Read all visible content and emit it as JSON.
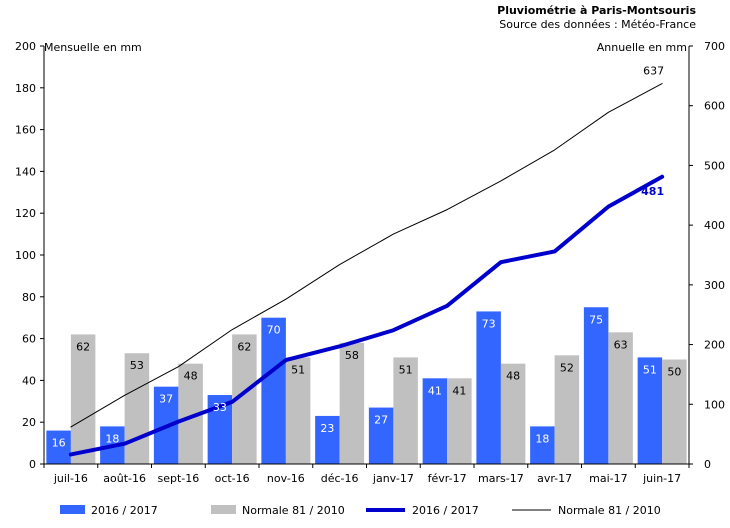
{
  "chart_data": {
    "type": "bar+line",
    "title": "Pluviométrie à Paris-Montsouris",
    "subtitle": "Source des données : Météo-France",
    "y_left_label": "Mensuelle en mm",
    "y_right_label": "Annuelle en mm",
    "y_left_lim": [
      0,
      200
    ],
    "y_left_ticks": [
      0,
      20,
      40,
      60,
      80,
      100,
      120,
      140,
      160,
      180,
      200
    ],
    "y_right_lim": [
      0,
      700
    ],
    "y_right_ticks": [
      0,
      100,
      200,
      300,
      400,
      500,
      600,
      700
    ],
    "categories": [
      "juil-16",
      "août-16",
      "sept-16",
      "oct-16",
      "nov-16",
      "déc-16",
      "janv-17",
      "févr-17",
      "mars-17",
      "avr-17",
      "mai-17",
      "juin-17"
    ],
    "bar_series": [
      {
        "name": "2016 / 2017",
        "color": "#3366ff",
        "label_color": "#ffffff",
        "values": [
          16,
          18,
          37,
          33,
          70,
          23,
          27,
          41,
          73,
          18,
          75,
          51
        ]
      },
      {
        "name": "Normale 81 / 2010",
        "color": "#c0c0c0",
        "label_color": "#000000",
        "values": [
          62,
          53,
          48,
          62,
          51,
          58,
          51,
          41,
          48,
          52,
          63,
          50
        ]
      }
    ],
    "line_series": [
      {
        "name": "2016 / 2017",
        "color": "#0000cc",
        "width": 4,
        "values": [
          16,
          34,
          71,
          104,
          174,
          197,
          224,
          265,
          338,
          356,
          431,
          481
        ],
        "end_label": "481"
      },
      {
        "name": "Normale 81 / 2010",
        "color": "#000000",
        "width": 1,
        "values": [
          62,
          115,
          163,
          225,
          276,
          334,
          385,
          426,
          474,
          526,
          589,
          637
        ],
        "end_label": "637"
      }
    ],
    "legend": [
      {
        "kind": "bar",
        "label": "2016 / 2017",
        "color": "#3366ff"
      },
      {
        "kind": "bar",
        "label": "Normale 81 / 2010",
        "color": "#c0c0c0"
      },
      {
        "kind": "line",
        "label": "2016 / 2017",
        "color": "#0000cc",
        "width": 4
      },
      {
        "kind": "line",
        "label": "Normale 81 / 2010",
        "color": "#000000",
        "width": 1
      }
    ]
  }
}
